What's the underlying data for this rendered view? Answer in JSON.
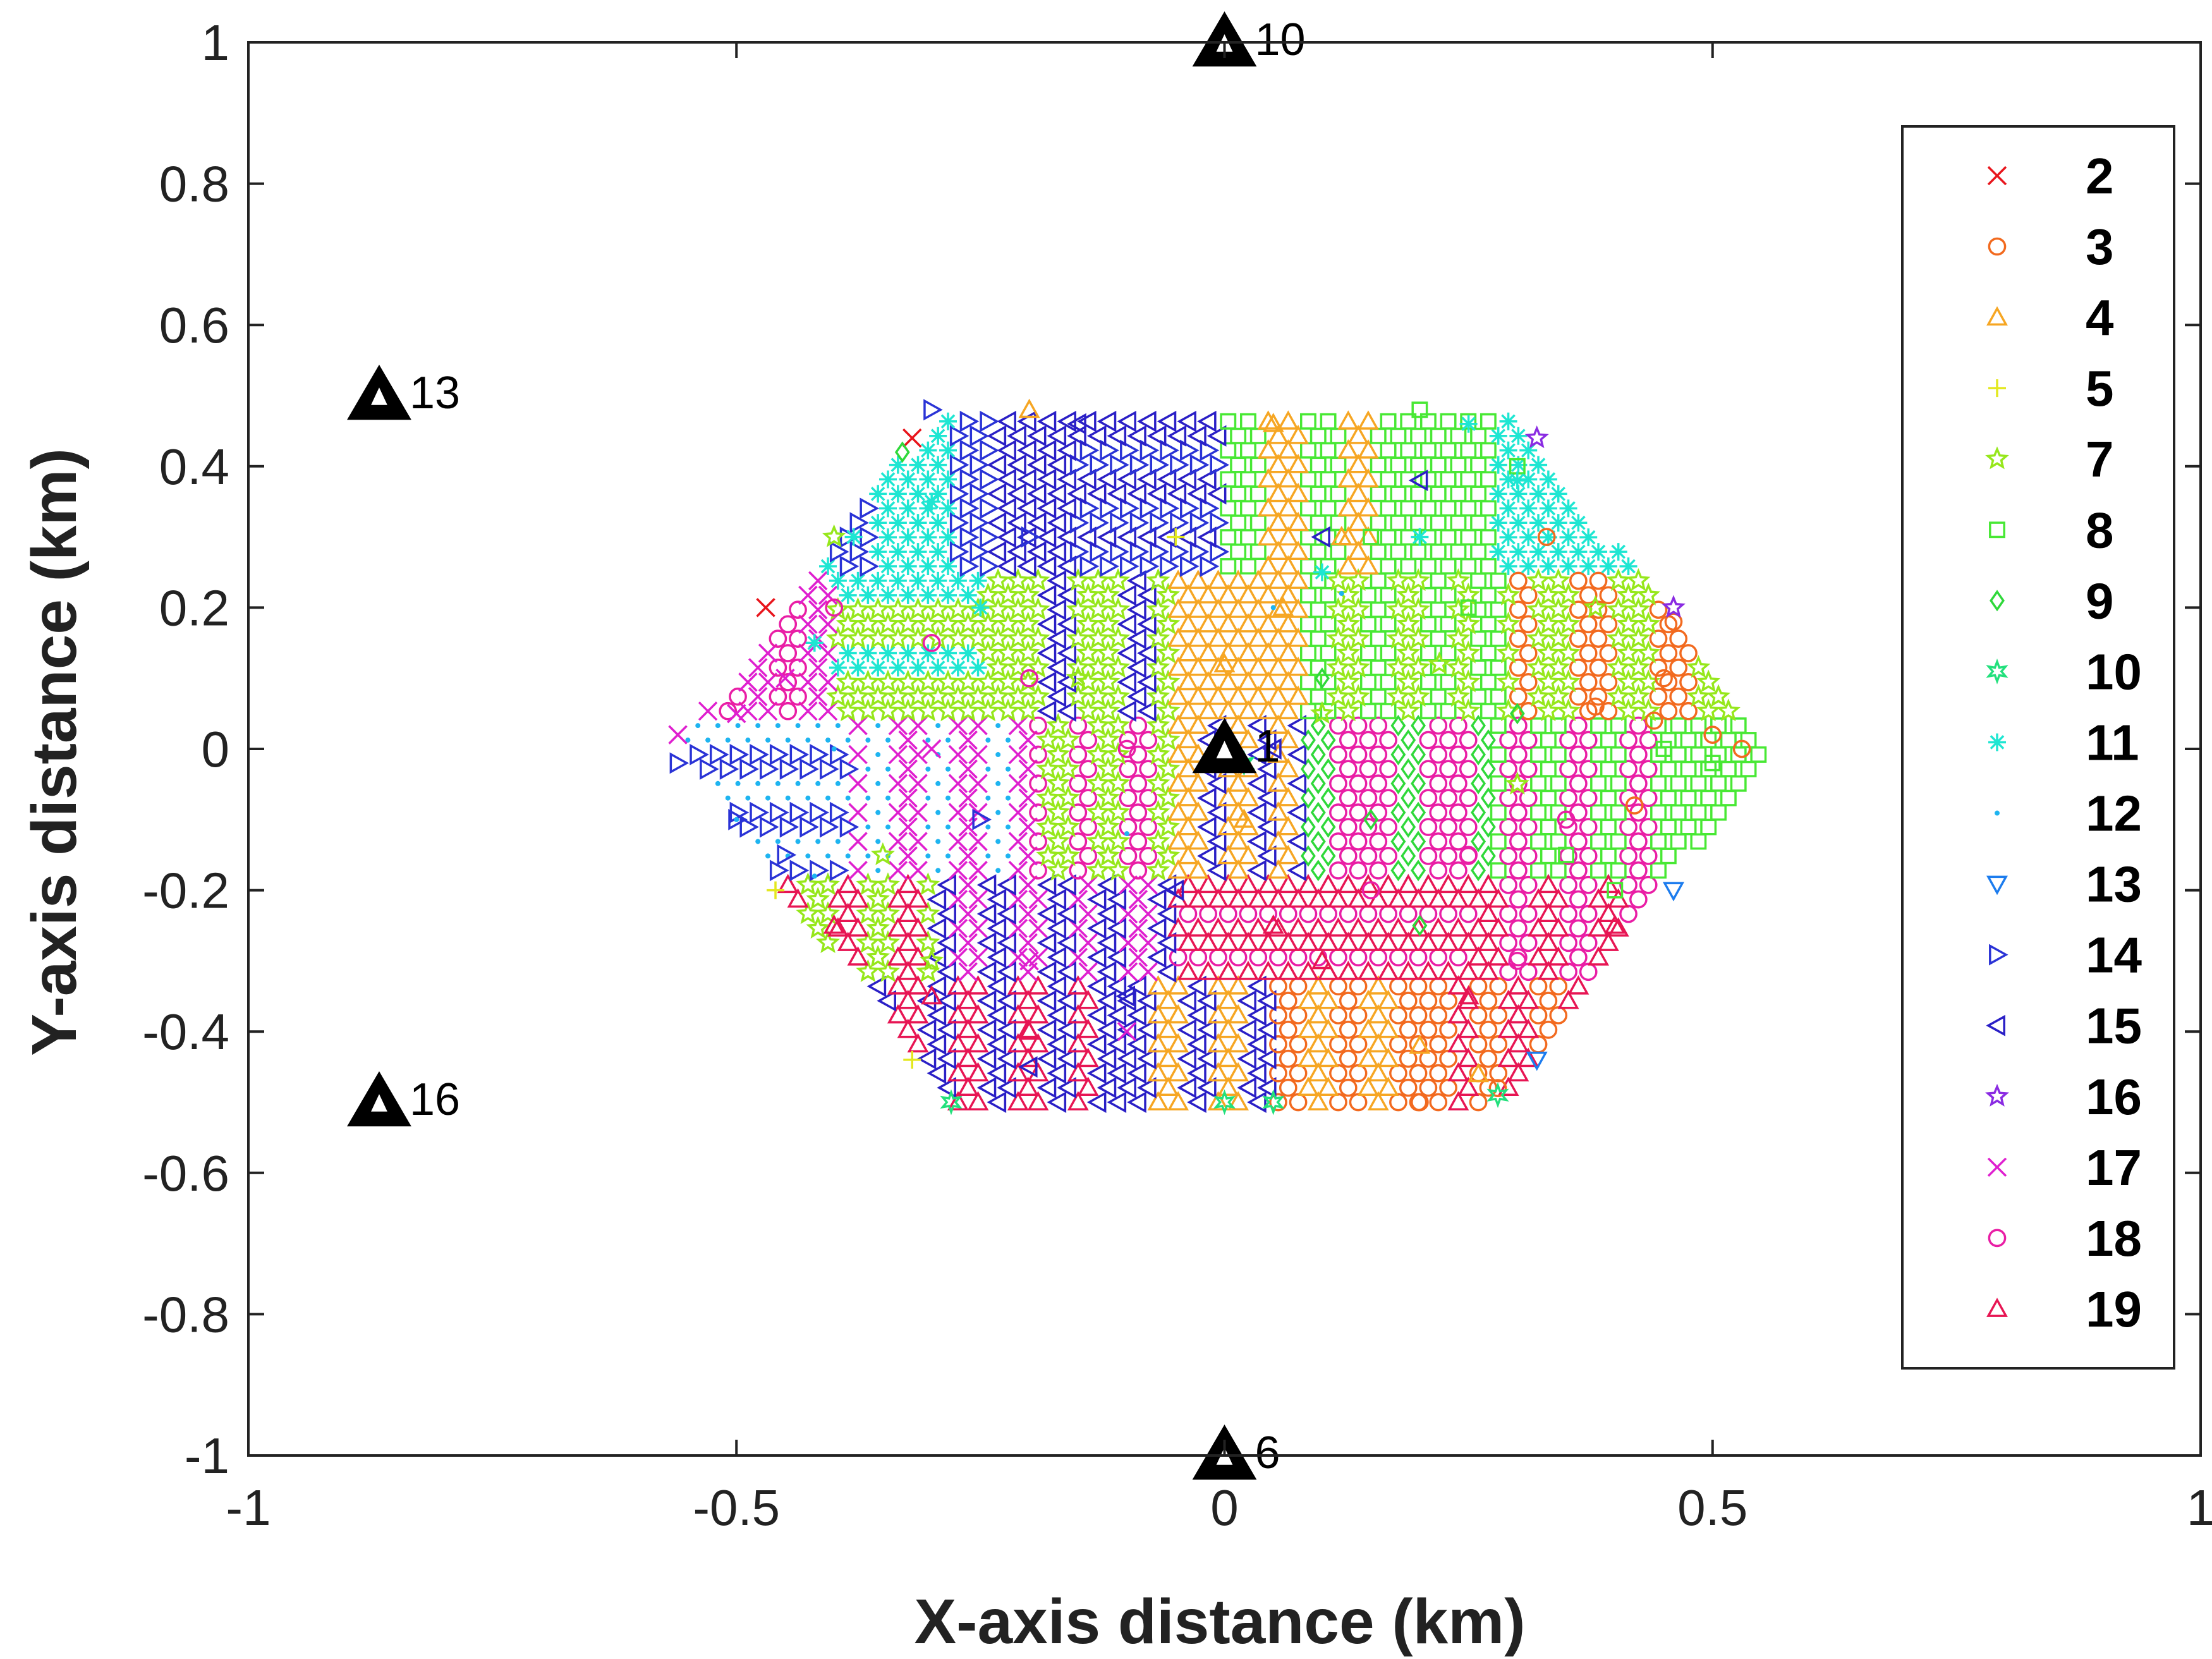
{
  "chart_data": {
    "type": "scatter",
    "title": "",
    "xlabel": "X-axis distance (km)",
    "ylabel": "Y-axis distance (km)",
    "xlim": [
      -1,
      1
    ],
    "ylim": [
      -1,
      1
    ],
    "xticks": [
      -1,
      -0.5,
      0,
      0.5,
      1
    ],
    "xtick_labels": [
      "-1",
      "-0.5",
      "0",
      "0.5",
      "1"
    ],
    "yticks": [
      1,
      0.8,
      0.6,
      0.4,
      0.2,
      0,
      -0.2,
      -0.4,
      -0.6,
      -0.8,
      -1
    ],
    "ytick_labels": [
      "1",
      "0.8",
      "0.6",
      "0.4",
      "0.2",
      "0",
      "-0.2",
      "-0.4",
      "-0.6",
      "-0.8",
      "-1"
    ],
    "grid": false,
    "legend_position": "right",
    "region_shape": "hexagon",
    "region_extent": {
      "x": [
        -0.56,
        0.56
      ],
      "y": [
        -0.5,
        0.48
      ]
    },
    "series": [
      {
        "name": "2",
        "marker": "x",
        "color": "#e8151c",
        "points": [
          [
            -0.47,
            0.2
          ],
          [
            -0.32,
            0.44
          ]
        ]
      },
      {
        "name": "3",
        "marker": "circle",
        "color": "#f26a1f",
        "points": [
          [
            0.45,
            0.1
          ],
          [
            0.5,
            0.02
          ],
          [
            0.53,
            0.0
          ],
          [
            0.33,
            0.3
          ],
          [
            0.28,
            -0.48
          ],
          [
            0.2,
            -0.5
          ],
          [
            0.46,
            0.18
          ],
          [
            0.38,
            0.06
          ],
          [
            0.42,
            -0.08
          ],
          [
            0.44,
            0.04
          ]
        ]
      },
      {
        "name": "4",
        "marker": "triangle",
        "color": "#f6a623",
        "points": [
          [
            -0.2,
            0.48
          ],
          [
            0.05,
            0.46
          ],
          [
            0.12,
            0.3
          ],
          [
            0.0,
            0.0
          ],
          [
            0.02,
            -0.1
          ],
          [
            0.1,
            -0.3
          ],
          [
            0.2,
            -0.42
          ],
          [
            0.26,
            -0.46
          ],
          [
            0.06,
            0.2
          ],
          [
            0.0,
            0.12
          ]
        ]
      },
      {
        "name": "5",
        "marker": "plus",
        "color": "#e3e81e",
        "points": [
          [
            -0.46,
            -0.2
          ],
          [
            -0.32,
            -0.44
          ],
          [
            -0.05,
            0.3
          ]
        ]
      },
      {
        "name": "7",
        "marker": "star",
        "color": "#96e71b",
        "points": [
          [
            -0.4,
            0.3
          ],
          [
            -0.3,
            -0.3
          ],
          [
            0.1,
            0.05
          ],
          [
            0.38,
            0.2
          ],
          [
            0.3,
            -0.05
          ],
          [
            -0.15,
            0.1
          ],
          [
            0.22,
            0.12
          ],
          [
            -0.35,
            -0.15
          ]
        ]
      },
      {
        "name": "8",
        "marker": "square",
        "color": "#48e834",
        "points": [
          [
            0.2,
            0.48
          ],
          [
            0.3,
            0.4
          ],
          [
            0.45,
            0.0
          ],
          [
            0.5,
            -0.02
          ],
          [
            0.35,
            -0.15
          ],
          [
            0.15,
            0.3
          ],
          [
            0.25,
            0.2
          ],
          [
            0.4,
            -0.2
          ]
        ]
      },
      {
        "name": "9",
        "marker": "diamond",
        "color": "#2fd83a",
        "points": [
          [
            -0.33,
            0.42
          ],
          [
            0.3,
            0.05
          ],
          [
            0.15,
            -0.1
          ],
          [
            0.2,
            -0.25
          ],
          [
            0.1,
            0.1
          ]
        ]
      },
      {
        "name": "10",
        "marker": "hexagram",
        "color": "#22e07c",
        "points": [
          [
            0.0,
            -0.5
          ],
          [
            0.05,
            -0.5
          ],
          [
            -0.28,
            -0.5
          ],
          [
            0.28,
            -0.49
          ],
          [
            0.02,
            -0.02
          ]
        ]
      },
      {
        "name": "11",
        "marker": "asterisk",
        "color": "#1ee6d2",
        "points": [
          [
            -0.38,
            0.3
          ],
          [
            -0.3,
            0.35
          ],
          [
            0.25,
            0.46
          ],
          [
            0.3,
            0.38
          ],
          [
            0.1,
            0.25
          ],
          [
            -0.25,
            0.2
          ],
          [
            0.2,
            0.3
          ],
          [
            -0.42,
            0.15
          ]
        ]
      },
      {
        "name": "12",
        "marker": "dot",
        "color": "#1eb4f0",
        "points": [
          [
            -0.5,
            -0.1
          ],
          [
            -0.4,
            0.0
          ],
          [
            0.05,
            0.2
          ],
          [
            -0.42,
            -0.18
          ],
          [
            0.12,
            0.22
          ],
          [
            -0.1,
            -0.12
          ]
        ]
      },
      {
        "name": "13",
        "marker": "triangle-down",
        "color": "#1c7cee",
        "points": [
          [
            0.46,
            -0.2
          ],
          [
            0.32,
            -0.44
          ]
        ]
      },
      {
        "name": "14",
        "marker": "triangle-right",
        "color": "#2a33d6",
        "points": [
          [
            -0.3,
            0.48
          ],
          [
            -0.56,
            -0.02
          ],
          [
            -0.5,
            -0.1
          ],
          [
            -0.45,
            -0.15
          ],
          [
            -0.2,
            0.3
          ],
          [
            -0.25,
            -0.1
          ]
        ]
      },
      {
        "name": "15",
        "marker": "triangle-left",
        "color": "#2a1fc6",
        "points": [
          [
            -0.15,
            0.46
          ],
          [
            0.05,
            0.0
          ],
          [
            0.1,
            0.3
          ],
          [
            -0.05,
            -0.2
          ],
          [
            -0.1,
            -0.35
          ],
          [
            -0.2,
            -0.45
          ],
          [
            0.2,
            0.38
          ]
        ]
      },
      {
        "name": "16",
        "marker": "pentagram",
        "color": "#8a2be2",
        "points": [
          [
            0.32,
            0.44
          ],
          [
            0.46,
            0.2
          ]
        ]
      },
      {
        "name": "17",
        "marker": "x",
        "color": "#df1fcf",
        "points": [
          [
            -0.56,
            0.02
          ],
          [
            -0.5,
            0.05
          ],
          [
            -0.45,
            0.1
          ],
          [
            -0.2,
            -0.3
          ],
          [
            -0.1,
            -0.4
          ],
          [
            -0.3,
            0.0
          ]
        ]
      },
      {
        "name": "18",
        "marker": "circle",
        "color": "#e91ea5",
        "points": [
          [
            -0.4,
            0.2
          ],
          [
            -0.3,
            0.15
          ],
          [
            -0.1,
            0.0
          ],
          [
            0.15,
            -0.2
          ],
          [
            0.3,
            -0.3
          ],
          [
            0.35,
            -0.1
          ],
          [
            0.25,
            -0.15
          ],
          [
            -0.2,
            0.1
          ]
        ]
      },
      {
        "name": "19",
        "marker": "triangle",
        "color": "#e71553",
        "points": [
          [
            -0.4,
            -0.25
          ],
          [
            -0.3,
            -0.35
          ],
          [
            -0.2,
            -0.4
          ],
          [
            0.1,
            -0.3
          ],
          [
            0.25,
            -0.35
          ],
          [
            0.4,
            -0.25
          ],
          [
            0.05,
            -0.25
          ]
        ]
      }
    ],
    "stations": [
      {
        "label": "10",
        "x": 0.0,
        "y": 1.0
      },
      {
        "label": "13",
        "x": -0.866,
        "y": 0.5
      },
      {
        "label": "16",
        "x": -0.866,
        "y": -0.5
      },
      {
        "label": "6",
        "x": 0.0,
        "y": -1.0
      },
      {
        "label": "1",
        "x": 0.0,
        "y": 0.0
      }
    ]
  }
}
